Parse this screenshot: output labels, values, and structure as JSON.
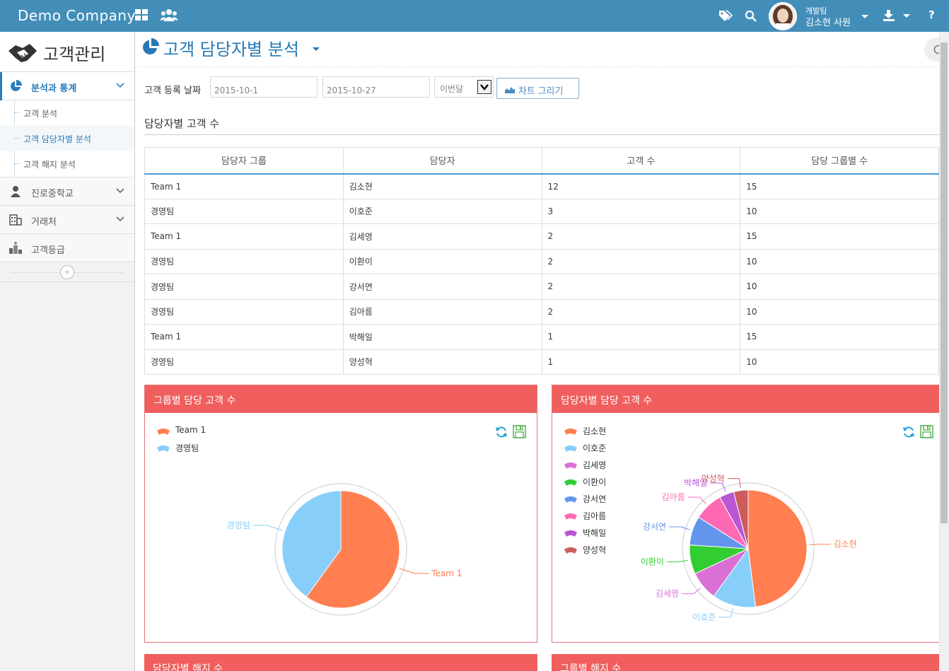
{
  "navbar": {
    "brand": "Demo Company",
    "user": {
      "team": "개발팀",
      "name": "김소현 사원"
    },
    "help": "?"
  },
  "sidebar": {
    "logo_text": "고객관리",
    "items": [
      {
        "label": "분석과 통계",
        "active": true,
        "children": [
          {
            "label": "고객 분석"
          },
          {
            "label": "고객 담당자별 분석",
            "active": true
          },
          {
            "label": "고객 해지 분석"
          }
        ]
      },
      {
        "label": "진로중학교"
      },
      {
        "label": "거래처"
      },
      {
        "label": "고객등급"
      }
    ],
    "collapse_icon": "«"
  },
  "page": {
    "title": "고객 담당자별 분석"
  },
  "filter": {
    "label": "고객 등록 날짜",
    "start_date": "2015-10-1",
    "end_date": "2015-10-27",
    "period": "이번달",
    "button": "차트 그리기"
  },
  "table_section": {
    "title": "담당자별 고객 수",
    "columns": [
      "담당자 그룹",
      "담당자",
      "고객 수",
      "담당 그룹별 수"
    ],
    "rows": [
      [
        "Team 1",
        "김소현",
        "12",
        "15"
      ],
      [
        "경영팀",
        "이호준",
        "3",
        "10"
      ],
      [
        "Team 1",
        "김세영",
        "2",
        "15"
      ],
      [
        "경영팀",
        "이환이",
        "2",
        "10"
      ],
      [
        "경영팀",
        "강서연",
        "2",
        "10"
      ],
      [
        "경영팀",
        "김아름",
        "2",
        "10"
      ],
      [
        "Team 1",
        "박해일",
        "1",
        "15"
      ],
      [
        "경영팀",
        "양성혁",
        "1",
        "10"
      ]
    ]
  },
  "widgets": {
    "group_chart_title": "그룹별 담당 고객 수",
    "person_chart_title": "담당자별 담당 고객 수",
    "bottom_left_title": "담당자별 해지 수",
    "bottom_right_title": "그룹별 해지 수"
  },
  "colors": {
    "navbar": "#438eb9",
    "widget_header": "#f05e5e",
    "accent": "#2b7dbc"
  },
  "chart_data": [
    {
      "type": "pie",
      "title": "그룹별 담당 고객 수",
      "categories": [
        "Team 1",
        "경영팀"
      ],
      "values": [
        15,
        10
      ],
      "colors": [
        "#ff7f50",
        "#87cefa"
      ],
      "legend": "top-left"
    },
    {
      "type": "pie",
      "title": "담당자별 담당 고객 수",
      "categories": [
        "김소현",
        "이호준",
        "김세영",
        "이환이",
        "강서연",
        "김아름",
        "박해일",
        "양성혁"
      ],
      "values": [
        12,
        3,
        2,
        2,
        2,
        2,
        1,
        1
      ],
      "colors": [
        "#ff7f50",
        "#87cefa",
        "#da70d6",
        "#32cd32",
        "#6495ed",
        "#ff69b4",
        "#ba55d3",
        "#cd5c5c"
      ],
      "legend": "top-left"
    }
  ]
}
